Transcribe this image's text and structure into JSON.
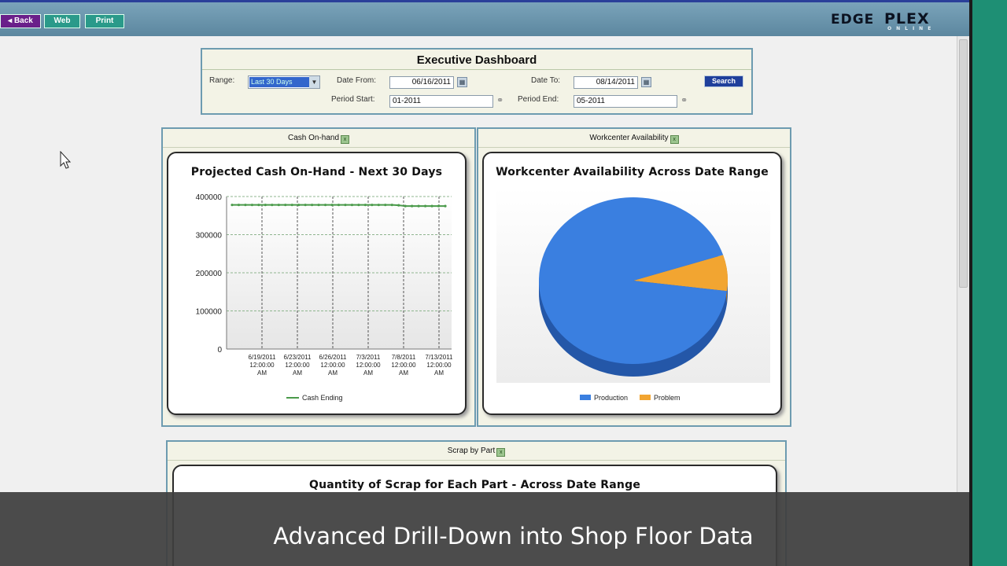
{
  "toolbar": {
    "back_label": "◂ Back",
    "web_label": "Web",
    "print_label": "Print"
  },
  "brand": {
    "edge": "EDGE",
    "plex": "PLEX",
    "online": "ONLINE"
  },
  "dashboard": {
    "title": "Executive Dashboard",
    "range_label": "Range:",
    "range_value": "Last 30 Days",
    "date_from_label": "Date From:",
    "date_from_value": "06/16/2011",
    "date_to_label": "Date To:",
    "date_to_value": "08/14/2011",
    "period_start_label": "Period Start:",
    "period_start_value": "01-2011",
    "period_end_label": "Period End:",
    "period_end_value": "05-2011",
    "search_label": "Search"
  },
  "panels": {
    "cash": {
      "header": "Cash On-hand",
      "title": "Projected Cash On-Hand - Next 30 Days"
    },
    "workcenter": {
      "header": "Workcenter Availability",
      "title": "Workcenter Availability Across Date Range"
    },
    "scrap": {
      "header": "Scrap by Part",
      "title": "Quantity of Scrap for Each Part - Across Date Range"
    }
  },
  "chart_data": [
    {
      "type": "line",
      "title": "Projected Cash On-Hand - Next 30 Days",
      "ylim": [
        0,
        400000
      ],
      "yticks": [
        "400000",
        "300000",
        "200000",
        "100000",
        "0"
      ],
      "xticks": [
        [
          "6/19/2011",
          "12:00:00",
          "AM"
        ],
        [
          "6/23/2011",
          "12:00:00",
          "AM"
        ],
        [
          "6/26/2011",
          "12:00:00",
          "AM"
        ],
        [
          "7/3/2011",
          "12:00:00",
          "AM"
        ],
        [
          "7/8/2011",
          "12:00:00",
          "AM"
        ],
        [
          "7/13/2011",
          "12:00:00",
          "AM"
        ]
      ],
      "series": [
        {
          "name": "Cash Ending",
          "color": "#4a9a4a",
          "values": [
            378000,
            378000,
            378000,
            378000,
            378000,
            378000,
            378000,
            378000,
            378000,
            378000,
            378000,
            378000,
            378000,
            378000,
            378000,
            378000,
            378000,
            378000,
            378000,
            378000,
            378000,
            378000,
            378000,
            378000,
            378000,
            377000,
            375000,
            375000,
            375000,
            375000,
            375000,
            375000,
            375000
          ]
        }
      ],
      "grid": true,
      "legend": "bottom"
    },
    {
      "type": "pie",
      "title": "Workcenter Availability Across Date Range",
      "slices": [
        {
          "name": "Production",
          "value": 93,
          "color": "#3a7fe0"
        },
        {
          "name": "Problem",
          "value": 7,
          "color": "#f2a531"
        }
      ],
      "legend": "bottom"
    }
  ],
  "caption": "Advanced Drill-Down into Shop Floor Data"
}
